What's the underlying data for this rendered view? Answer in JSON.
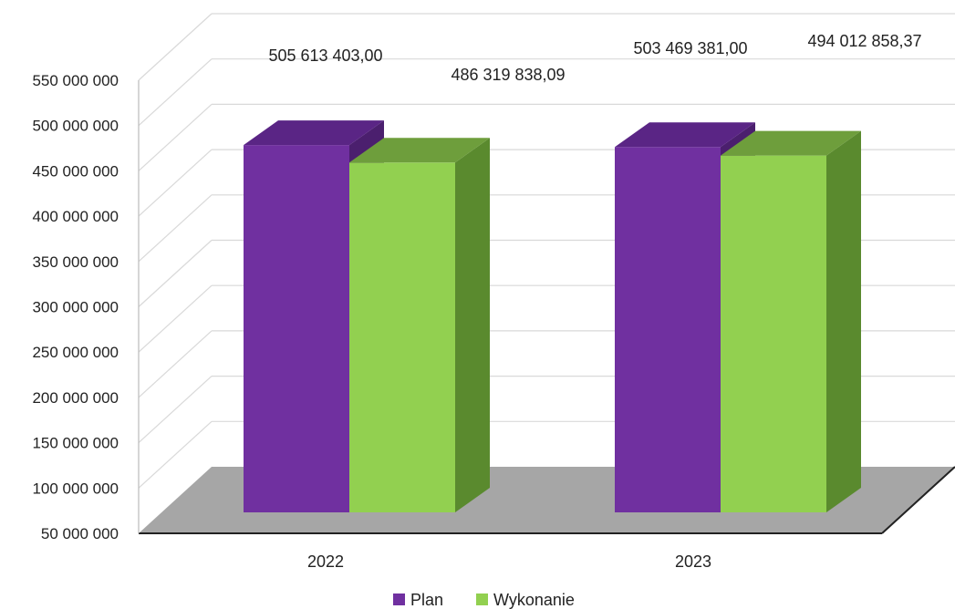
{
  "chart_data": {
    "type": "bar",
    "title": "",
    "xlabel": "",
    "ylabel": "",
    "categories": [
      "2022",
      "2023"
    ],
    "series": [
      {
        "name": "Plan",
        "values": [
          505613403.0,
          503469381.0
        ],
        "labels": [
          "505 613 403,00",
          "503 469 381,00"
        ],
        "color": "#7030a0",
        "side_color": "#4b1f6e",
        "top_color": "#5a2585"
      },
      {
        "name": "Wykonanie",
        "values": [
          486319838.09,
          494012858.37
        ],
        "labels": [
          "486 319 838,09",
          "494 012 858,37"
        ],
        "color": "#92d050",
        "side_color": "#5a8a2e",
        "top_color": "#6e9e3c"
      }
    ],
    "ylim": [
      50000000,
      550000000
    ],
    "yticks": [
      50000000,
      100000000,
      150000000,
      200000000,
      250000000,
      300000000,
      350000000,
      400000000,
      450000000,
      500000000,
      550000000
    ],
    "ytick_labels": [
      "50 000 000",
      "100 000 000",
      "150 000 000",
      "200 000 000",
      "250 000 000",
      "300 000 000",
      "350 000 000",
      "400 000 000",
      "450 000 000",
      "500 000 000",
      "550 000 000"
    ],
    "grid": true,
    "legend_position": "bottom",
    "floor_color": "#a6a6a6",
    "grid_color": "#d9d9d9"
  }
}
